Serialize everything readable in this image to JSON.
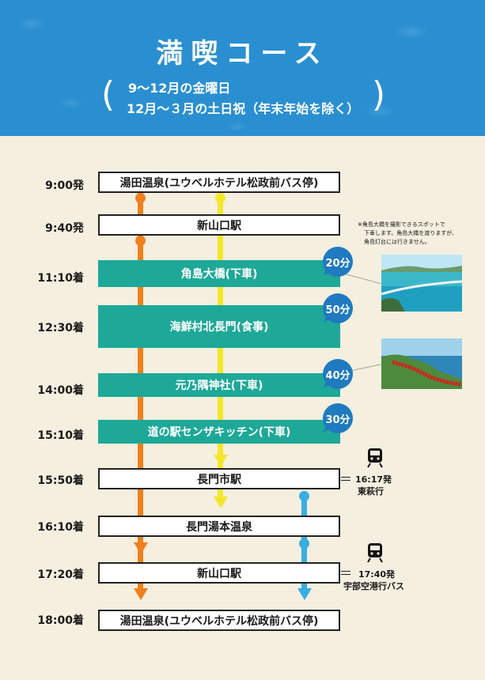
{
  "header": {
    "title": "満喫コース",
    "schedule_line1": "9～12月の金曜日",
    "schedule_line2": "12月～３月の土日祝（年末年始を除く）",
    "paren_open": "(",
    "paren_close": ")"
  },
  "stops": [
    {
      "time": "9:00発",
      "name": "湯田温泉(ユウベルホテル松政前バス停)"
    },
    {
      "time": "9:40発",
      "name": "新山口駅"
    },
    {
      "time": "11:10着",
      "name": "角島大橋(下車)"
    },
    {
      "time": "12:30着",
      "name": "海鮮村北長門(食事)"
    },
    {
      "time": "14:00着",
      "name": "元乃隅神社(下車)"
    },
    {
      "time": "15:10着",
      "name": "道の駅センザキッチン(下車)"
    },
    {
      "time": "15:50着",
      "name": "長門市駅"
    },
    {
      "time": "16:10着",
      "name": "長門湯本温泉"
    },
    {
      "time": "17:20着",
      "name": "新山口駅"
    },
    {
      "time": "18:00着",
      "name": "湯田温泉(ユウベルホテル松政前バス停)"
    }
  ],
  "stay_durations": [
    "20分",
    "50分",
    "40分",
    "30分"
  ],
  "note": {
    "line1": "※角島大橋を撮影できるスポットで",
    "line2": "下車します。角島大橋を渡りますが、",
    "line3": "角島灯台には行きません。"
  },
  "connections": [
    {
      "time": "16:17発",
      "dest": "東萩行"
    },
    {
      "time": "17:40発",
      "dest": "宇部空港行バス"
    }
  ],
  "colors": {
    "header_blue": "#2a8fd0",
    "teal": "#1ea898",
    "orange_route": "#f07f1e",
    "yellow_route": "#f4e72a",
    "blue_route": "#3aaee0",
    "bubble": "#1f7ac0"
  }
}
